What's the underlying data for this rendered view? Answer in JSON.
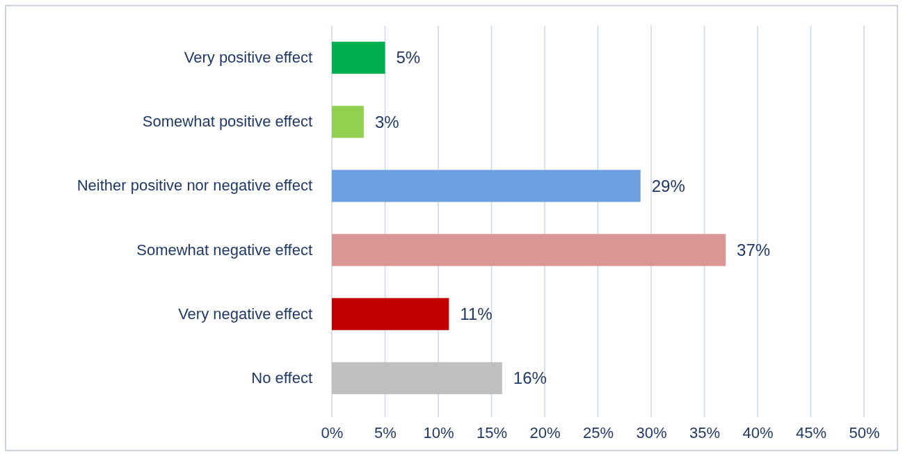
{
  "chart_data": {
    "type": "bar",
    "orientation": "horizontal",
    "categories": [
      "Very positive effect",
      "Somewhat positive effect",
      "Neither positive nor negative effect",
      "Somewhat negative effect",
      "Very negative effect",
      "No effect"
    ],
    "values": [
      5,
      3,
      29,
      37,
      11,
      16
    ],
    "colors": [
      "#00b050",
      "#92d050",
      "#6b9fe0",
      "#d99694",
      "#c00000",
      "#bfbfbf"
    ],
    "value_labels": [
      "5%",
      "3%",
      "29%",
      "37%",
      "11%",
      "16%"
    ],
    "xlim": [
      0,
      50
    ],
    "xticks": [
      {
        "value": 0,
        "label": "0%"
      },
      {
        "value": 5,
        "label": "5%"
      },
      {
        "value": 10,
        "label": "10%"
      },
      {
        "value": 15,
        "label": "15%"
      },
      {
        "value": 20,
        "label": "20%"
      },
      {
        "value": 25,
        "label": "25%"
      },
      {
        "value": 30,
        "label": "30%"
      },
      {
        "value": 35,
        "label": "35%"
      },
      {
        "value": 40,
        "label": "40%"
      },
      {
        "value": 45,
        "label": "45%"
      },
      {
        "value": 50,
        "label": "50%"
      }
    ],
    "grid": "x"
  }
}
